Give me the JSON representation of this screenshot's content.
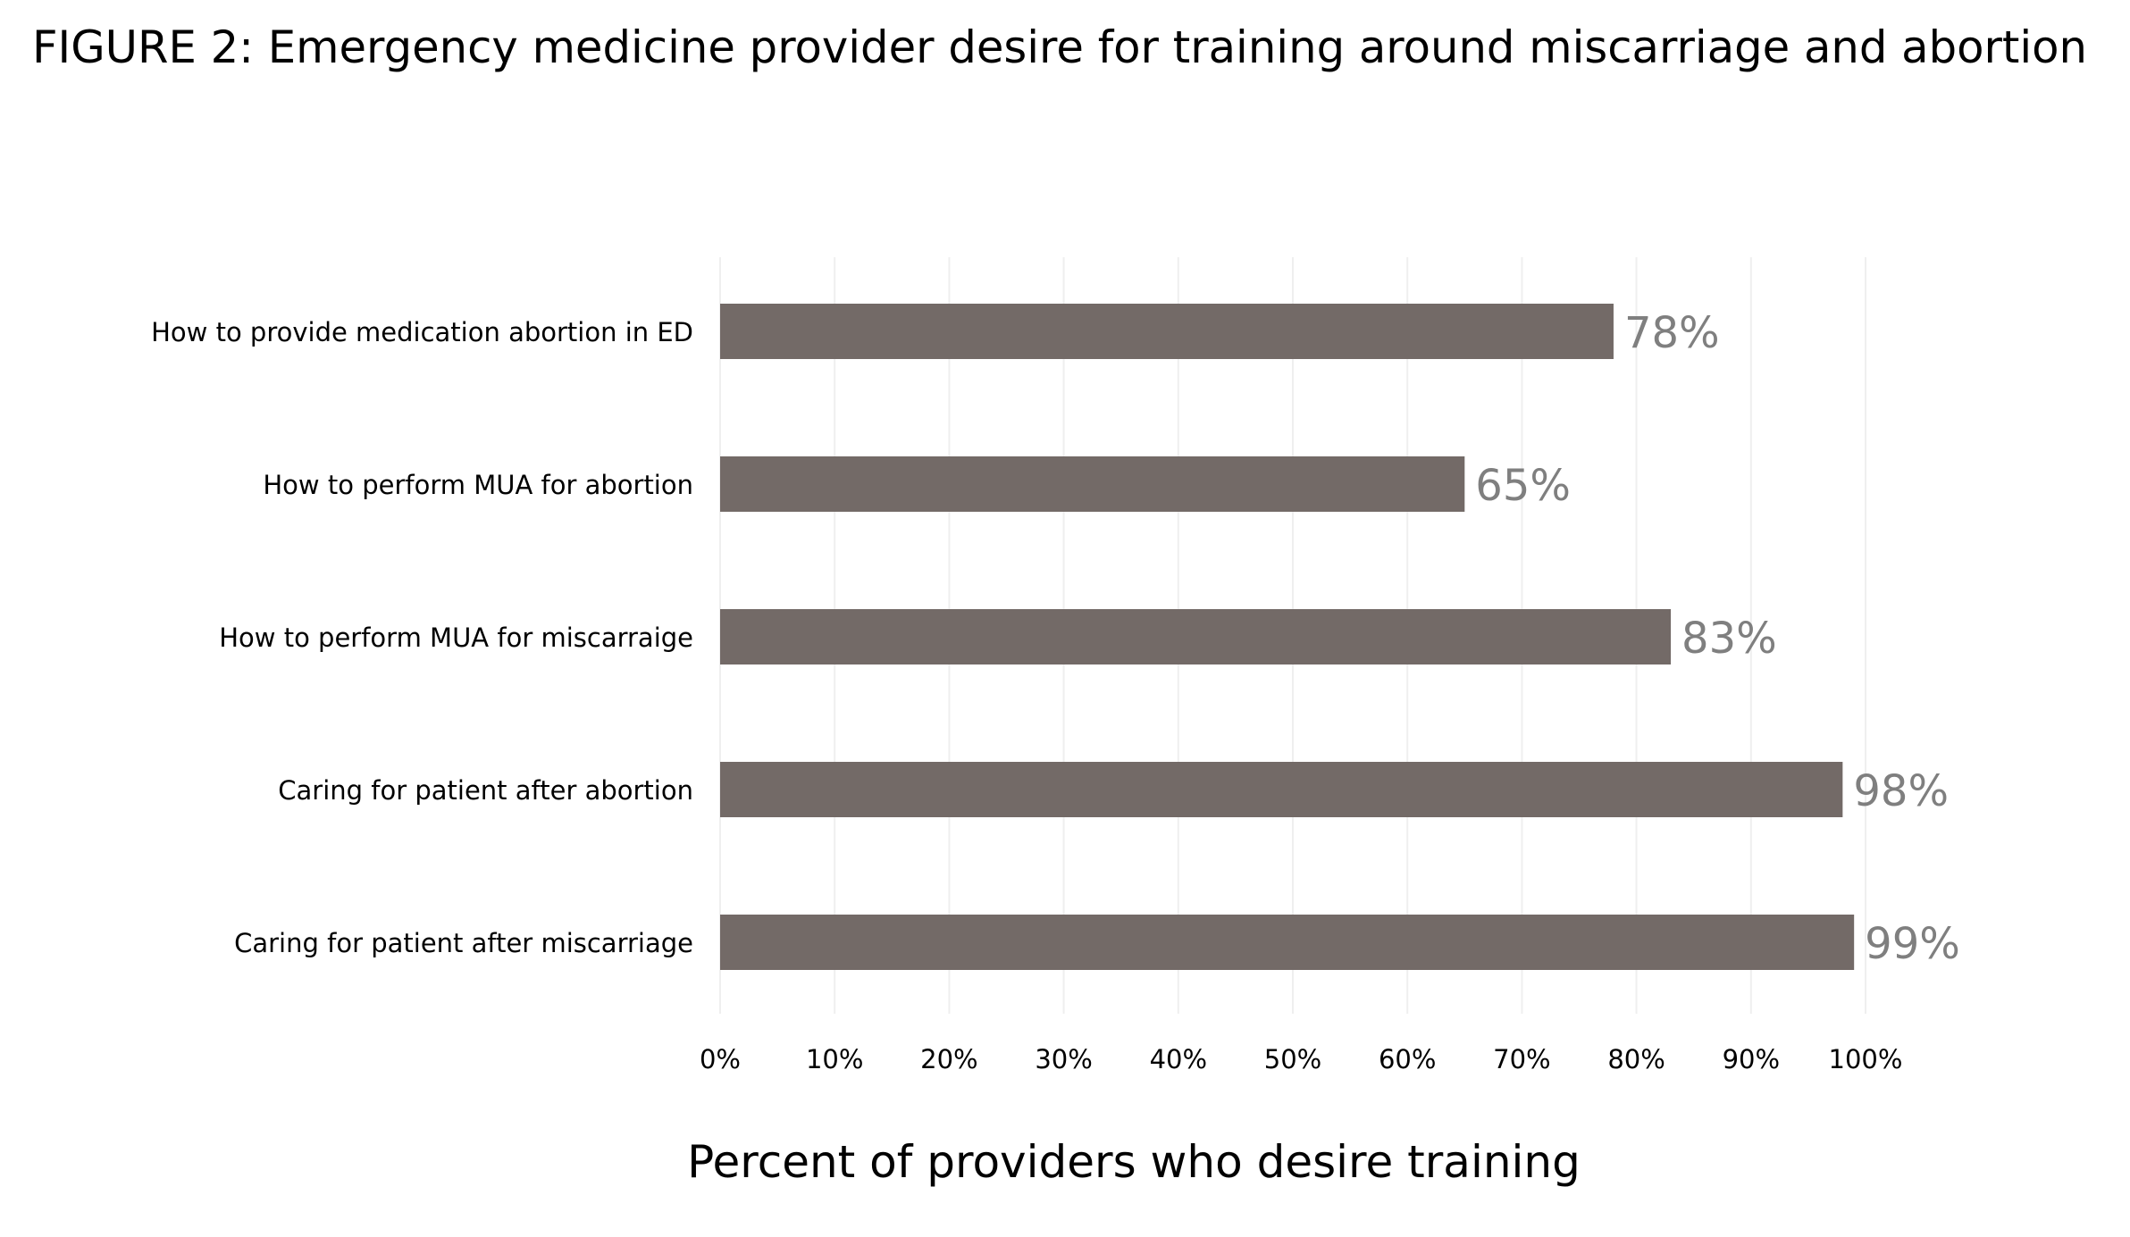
{
  "chart_data": {
    "type": "bar",
    "orientation": "horizontal",
    "title": "FIGURE 2: Emergency medicine provider desire for training around miscarriage and abortion",
    "xlabel": "Percent of providers who desire training",
    "ylabel": "",
    "categories": [
      "How to provide medication abortion in ED",
      "How to perform MUA for abortion",
      "How to perform MUA for miscarraige",
      "Caring for patient after abortion",
      "Caring for patient after miscarriage"
    ],
    "values": [
      78,
      65,
      83,
      98,
      99
    ],
    "data_labels": [
      "78%",
      "65%",
      "83%",
      "98%",
      "99%"
    ],
    "xlim": [
      0,
      100
    ],
    "x_ticks": [
      "0%",
      "10%",
      "20%",
      "30%",
      "40%",
      "50%",
      "60%",
      "70%",
      "80%",
      "90%",
      "100%"
    ],
    "grid": true,
    "legend": "none",
    "colors": {
      "bar": "#736a67",
      "data_label": "#7f7f7f",
      "gridline": "#efefef",
      "text": "#000000"
    }
  }
}
